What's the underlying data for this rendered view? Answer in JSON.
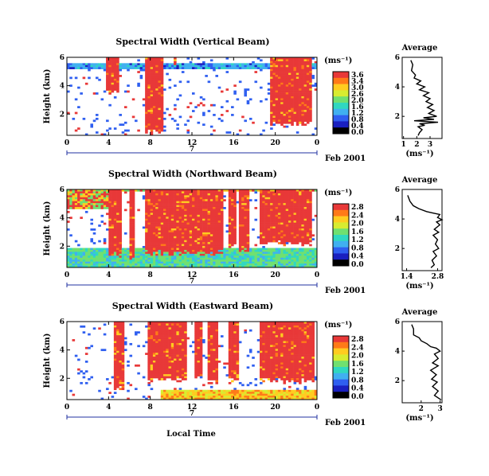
{
  "chart_data": [
    {
      "type": "heatmap",
      "title": "Spectral Width (Vertical Beam)",
      "ylabel": "Height (km)",
      "xlabel": "",
      "x_ticks": [
        "0",
        "4",
        "8",
        "12",
        "16",
        "20",
        "0"
      ],
      "y_ticks": [
        "6",
        "4",
        "2"
      ],
      "xlim": [
        0,
        24
      ],
      "ylim": [
        0.5,
        6
      ],
      "date_tick": "7",
      "date_label": "Feb 2001",
      "colorbar": {
        "unit": "(ms⁻¹)",
        "ticks": [
          "3.6",
          "3.4",
          "3.0",
          "2.6",
          "2.0",
          "1.6",
          "1.2",
          "0.8",
          "0.4",
          "0.0"
        ]
      },
      "profile": {
        "title": "Average",
        "xlabel": "(ms⁻¹)",
        "x_ticks": [
          "1",
          "2",
          "3"
        ],
        "xlim": [
          0.9,
          3.9
        ],
        "y_ticks": [
          "6",
          "4",
          "2"
        ],
        "ylim": [
          0.5,
          6
        ],
        "points": [
          [
            1.55,
            5.8
          ],
          [
            1.7,
            5.5
          ],
          [
            1.6,
            5.1
          ],
          [
            1.9,
            4.8
          ],
          [
            1.8,
            4.6
          ],
          [
            2.3,
            4.4
          ],
          [
            2.0,
            4.2
          ],
          [
            2.6,
            4.0
          ],
          [
            2.2,
            3.8
          ],
          [
            2.9,
            3.6
          ],
          [
            2.5,
            3.4
          ],
          [
            3.0,
            3.2
          ],
          [
            2.7,
            3.0
          ],
          [
            3.2,
            2.8
          ],
          [
            2.8,
            2.6
          ],
          [
            3.3,
            2.4
          ],
          [
            2.9,
            2.2
          ],
          [
            3.5,
            2.0
          ],
          [
            2.5,
            1.9
          ],
          [
            3.3,
            1.8
          ],
          [
            1.8,
            1.7
          ],
          [
            3.6,
            1.6
          ],
          [
            2.2,
            1.5
          ],
          [
            2.6,
            1.4
          ],
          [
            2.1,
            1.3
          ],
          [
            2.4,
            1.1
          ],
          [
            2.2,
            0.9
          ],
          [
            2.1,
            0.7
          ]
        ]
      }
    },
    {
      "type": "heatmap",
      "title": "Spectral Width (Northward Beam)",
      "ylabel": "Height (km)",
      "xlabel": "",
      "x_ticks": [
        "0",
        "4",
        "8",
        "12",
        "16",
        "20",
        "0"
      ],
      "y_ticks": [
        "6",
        "4",
        "2"
      ],
      "xlim": [
        0,
        24
      ],
      "ylim": [
        0.5,
        6
      ],
      "date_tick": "7",
      "date_label": "Feb 2001",
      "colorbar": {
        "unit": "(ms⁻¹)",
        "ticks": [
          "2.8",
          "2.4",
          "2.0",
          "1.6",
          "1.2",
          "0.8",
          "0.4",
          "0.0"
        ]
      },
      "profile": {
        "title": "Average",
        "xlabel": "(ms⁻¹)",
        "x_ticks": [
          "1.4",
          "2.8"
        ],
        "xlim": [
          1.2,
          3.0
        ],
        "y_ticks": [
          "6",
          "4",
          "2"
        ],
        "ylim": [
          0.5,
          6
        ],
        "points": [
          [
            1.45,
            5.6
          ],
          [
            1.55,
            5.2
          ],
          [
            1.7,
            4.9
          ],
          [
            1.95,
            4.7
          ],
          [
            2.3,
            4.5
          ],
          [
            2.6,
            4.4
          ],
          [
            2.9,
            4.3
          ],
          [
            2.8,
            4.1
          ],
          [
            3.0,
            3.95
          ],
          [
            2.75,
            3.8
          ],
          [
            2.9,
            3.6
          ],
          [
            2.65,
            3.3
          ],
          [
            2.85,
            3.1
          ],
          [
            2.6,
            2.9
          ],
          [
            2.8,
            2.6
          ],
          [
            2.7,
            2.3
          ],
          [
            2.85,
            2.0
          ],
          [
            2.6,
            1.8
          ],
          [
            2.75,
            1.5
          ],
          [
            2.55,
            1.2
          ],
          [
            2.65,
            0.9
          ],
          [
            2.5,
            0.7
          ]
        ]
      }
    },
    {
      "type": "heatmap",
      "title": "Spectral Width (Eastward Beam)",
      "ylabel": "Height (km)",
      "xlabel": "Local Time",
      "x_ticks": [
        "0",
        "4",
        "8",
        "12",
        "16",
        "20",
        "0"
      ],
      "y_ticks": [
        "6",
        "4",
        "2"
      ],
      "xlim": [
        0,
        24
      ],
      "ylim": [
        0.5,
        6
      ],
      "date_tick": "7",
      "date_label": "Feb 2001",
      "colorbar": {
        "unit": "(ms⁻¹)",
        "ticks": [
          "2.8",
          "2.4",
          "2.0",
          "1.6",
          "1.2",
          "0.8",
          "0.4",
          "0.0"
        ]
      },
      "profile": {
        "title": "Average",
        "xlabel": "(ms⁻¹)",
        "x_ticks": [
          "2",
          "3"
        ],
        "xlim": [
          1.0,
          3.1
        ],
        "y_ticks": [
          "6",
          "4",
          "2"
        ],
        "ylim": [
          0.5,
          6
        ],
        "points": [
          [
            1.5,
            5.8
          ],
          [
            1.6,
            5.5
          ],
          [
            1.6,
            5.1
          ],
          [
            1.9,
            4.9
          ],
          [
            2.0,
            4.7
          ],
          [
            2.3,
            4.5
          ],
          [
            2.5,
            4.3
          ],
          [
            2.8,
            4.2
          ],
          [
            3.0,
            4.0
          ],
          [
            2.7,
            3.8
          ],
          [
            2.9,
            3.5
          ],
          [
            2.6,
            3.2
          ],
          [
            2.9,
            3.0
          ],
          [
            2.5,
            2.7
          ],
          [
            2.8,
            2.4
          ],
          [
            2.55,
            2.1
          ],
          [
            2.85,
            1.9
          ],
          [
            2.6,
            1.6
          ],
          [
            2.9,
            1.3
          ],
          [
            2.7,
            1.0
          ],
          [
            3.05,
            0.7
          ]
        ]
      }
    }
  ],
  "colors": {
    "high": "#f04040",
    "scale": [
      "#e83838",
      "#ff7a18",
      "#ffcc20",
      "#d8ec30",
      "#70e070",
      "#30d8c0",
      "#40b0f0",
      "#2f5ff0",
      "#1a20c0",
      "#000000"
    ]
  }
}
